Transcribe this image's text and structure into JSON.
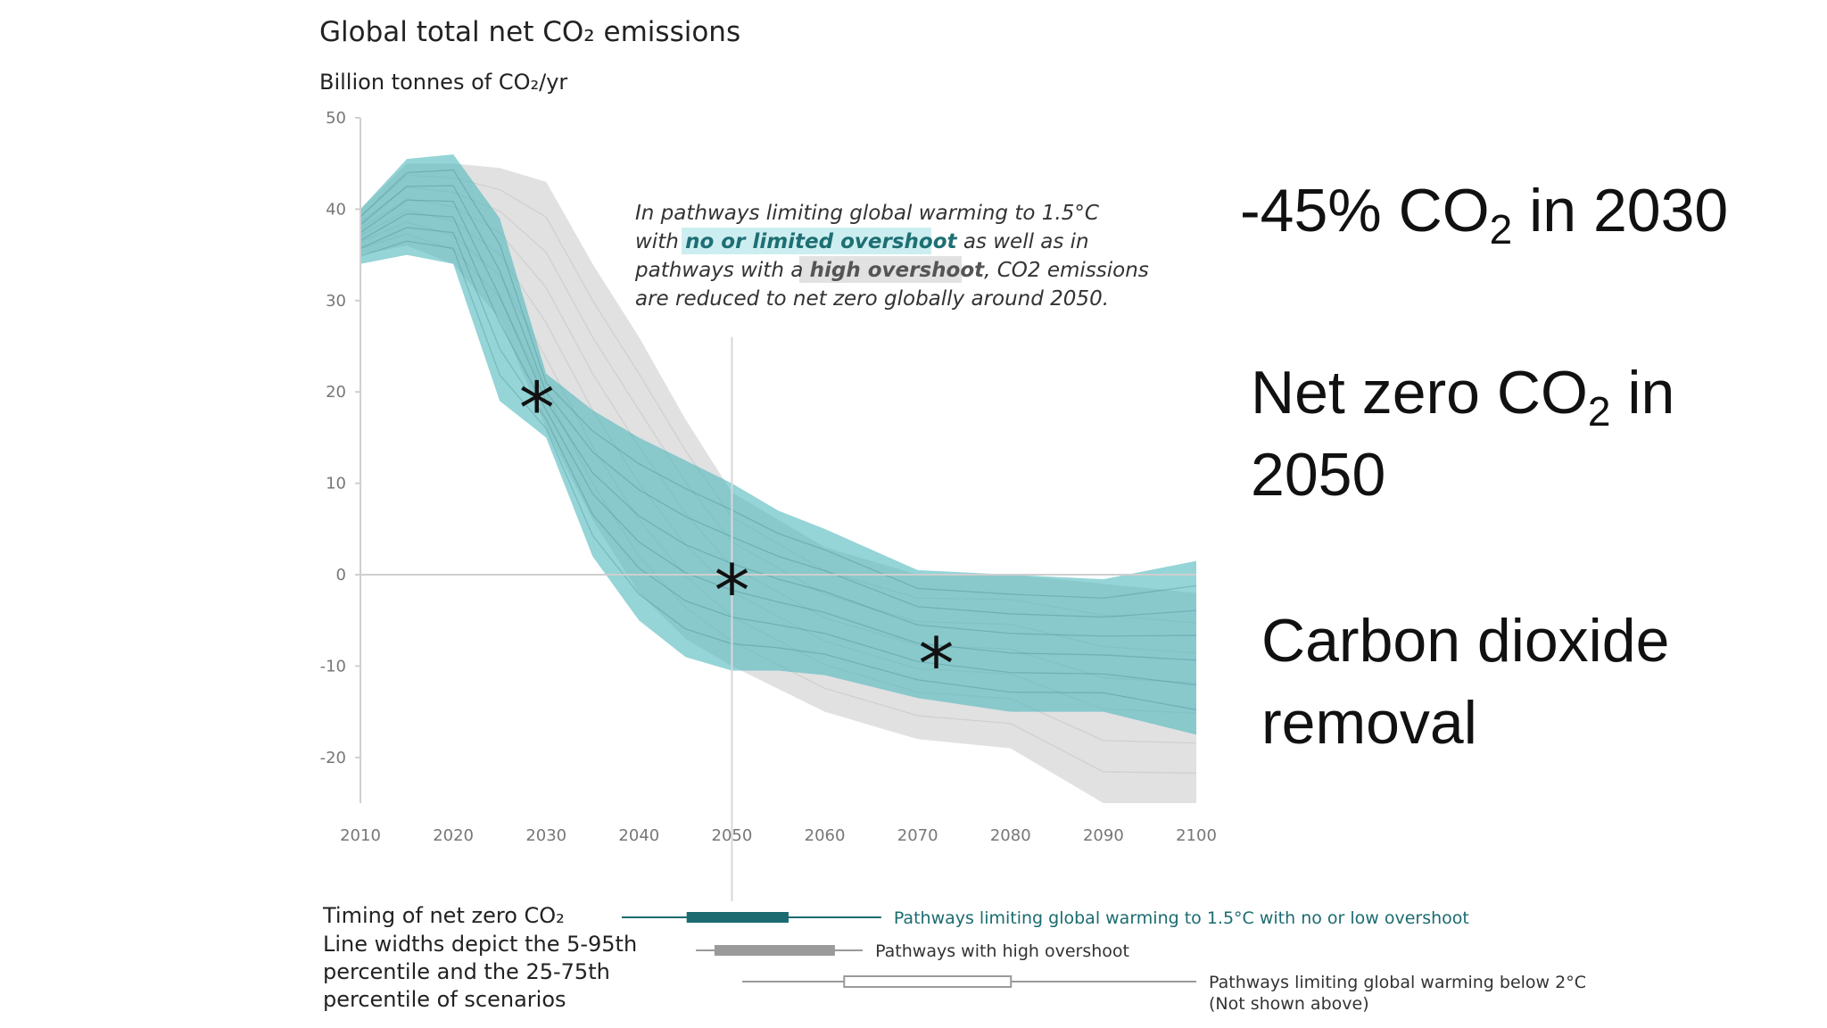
{
  "chart_data": {
    "type": "area",
    "title": "Global total net CO₂ emissions",
    "ylabel": "Billion tonnes of CO₂/yr",
    "xlabel": "",
    "x_ticks": [
      "2010",
      "2020",
      "2030",
      "2040",
      "2050",
      "2060",
      "2070",
      "2080",
      "2090",
      "2100"
    ],
    "y_ticks": [
      "50",
      "40",
      "30",
      "20",
      "10",
      "0",
      "-10",
      "-20"
    ],
    "xlim": [
      2010,
      2100
    ],
    "ylim": [
      -25,
      50
    ],
    "grid": false,
    "zero_line": true,
    "colors": {
      "teal": "#4fb7bd",
      "teal_dark": "#1b6b70",
      "grey": "#c9c9cb",
      "grey_dark": "#9a9a9a"
    },
    "series": [
      {
        "name": "Pathways with high overshoot",
        "style": "grey-band",
        "x": [
          2010,
          2015,
          2020,
          2025,
          2030,
          2035,
          2040,
          2045,
          2050,
          2060,
          2070,
          2080,
          2090,
          2100
        ],
        "upper": [
          40,
          45,
          45,
          44.5,
          43,
          34,
          26,
          17,
          9,
          3,
          0,
          0,
          -1,
          -2
        ],
        "lower": [
          35,
          36,
          34,
          28,
          16,
          6,
          -2,
          -7,
          -10,
          -15,
          -18,
          -19,
          -25,
          -25
        ]
      },
      {
        "name": "Pathways limiting global warming to 1.5°C with no or limited overshoot",
        "style": "teal-band",
        "x": [
          2010,
          2015,
          2020,
          2025,
          2030,
          2035,
          2040,
          2045,
          2050,
          2055,
          2060,
          2070,
          2080,
          2090,
          2100
        ],
        "upper": [
          40,
          45.5,
          46,
          39,
          22,
          18,
          15,
          12.5,
          10,
          7,
          5,
          0.5,
          0,
          -0.5,
          1.5
        ],
        "lower": [
          34,
          35,
          34,
          19,
          15,
          2,
          -5,
          -9,
          -10.5,
          -10.5,
          -11,
          -13.5,
          -15,
          -15,
          -17.5
        ]
      }
    ],
    "annotation": {
      "line1": "In pathways limiting global warming to 1.5°C",
      "line2_pre": "with ",
      "line2_hl": "no or limited overshoot",
      "line2_post": " as well as in",
      "line3_pre": "pathways with a ",
      "line3_hl": "high overshoot",
      "line3_post": ", CO2 emissions",
      "line4": "are reduced to net zero globally around 2050."
    },
    "markers": [
      {
        "label": "*",
        "x": 2029,
        "y": 19
      },
      {
        "label": "*",
        "x": 2050,
        "y": -1
      },
      {
        "label": "*",
        "x": 2072,
        "y": -9
      }
    ],
    "net_zero_timing": {
      "title": "Timing of net zero CO₂",
      "note_lines": [
        "Line widths depict the 5-95th",
        "percentile and the 25-75th",
        "percentile of scenarios"
      ],
      "bars": [
        {
          "label": "Pathways limiting global warming to 1.5°C with no or low overshoot",
          "range_5_95": [
            2038,
            2066
          ],
          "range_25_75": [
            2045,
            2056
          ],
          "style": "teal"
        },
        {
          "label": "Pathways with high overshoot",
          "range_5_95": [
            2046,
            2064
          ],
          "range_25_75": [
            2048,
            2061
          ],
          "style": "grey"
        },
        {
          "label": "Pathways limiting global warming below 2°C",
          "sublabel": "(Not shown above)",
          "range_5_95": [
            2051,
            2100
          ],
          "range_25_75": [
            2062,
            2080
          ],
          "style": "outline"
        }
      ]
    }
  },
  "side_notes": {
    "cut_pre": "-45% CO",
    "cut_sub": "2",
    "cut_post": " in 2030",
    "netzero_pre": "Net zero CO",
    "netzero_sub": "2",
    "netzero_post": " in",
    "netzero_line2": "2050",
    "cdr_line1": "Carbon dioxide",
    "cdr_line2": "removal"
  }
}
